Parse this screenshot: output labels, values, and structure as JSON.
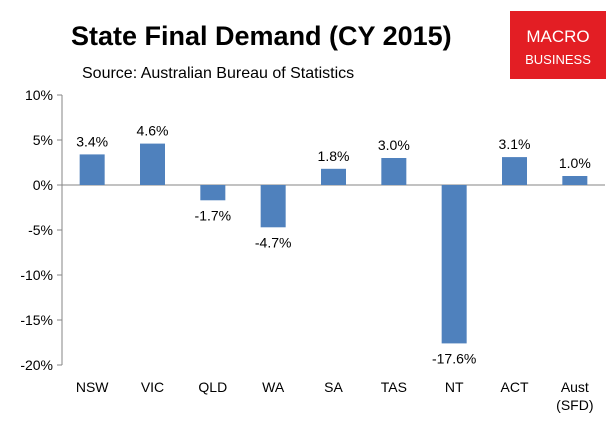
{
  "chart_data": {
    "type": "bar",
    "title": "State Final Demand (CY 2015)",
    "subtitle": "Source: Australian Bureau of Statistics",
    "categories": [
      "NSW",
      "VIC",
      "QLD",
      "WA",
      "SA",
      "TAS",
      "NT",
      "ACT",
      "Aust\n(SFD)"
    ],
    "values": [
      3.4,
      4.6,
      -1.7,
      -4.7,
      1.8,
      3.0,
      -17.6,
      3.1,
      1.0
    ],
    "data_labels": [
      "3.4%",
      "4.6%",
      "-1.7%",
      "-4.7%",
      "1.8%",
      "3.0%",
      "-17.6%",
      "3.1%",
      "1.0%"
    ],
    "yticks": [
      10,
      5,
      0,
      -5,
      -10,
      -15,
      -20
    ],
    "ytick_labels": [
      "10%",
      "5%",
      "0%",
      "-5%",
      "-10%",
      "-15%",
      "-20%"
    ],
    "ylim": [
      -20,
      10
    ],
    "xlabel": "",
    "ylabel": "",
    "grid": false,
    "bar_color": "#4f81bd"
  },
  "logo": {
    "line1": "MACRO",
    "line2": "BUSINESS",
    "color": "#e31e24"
  }
}
